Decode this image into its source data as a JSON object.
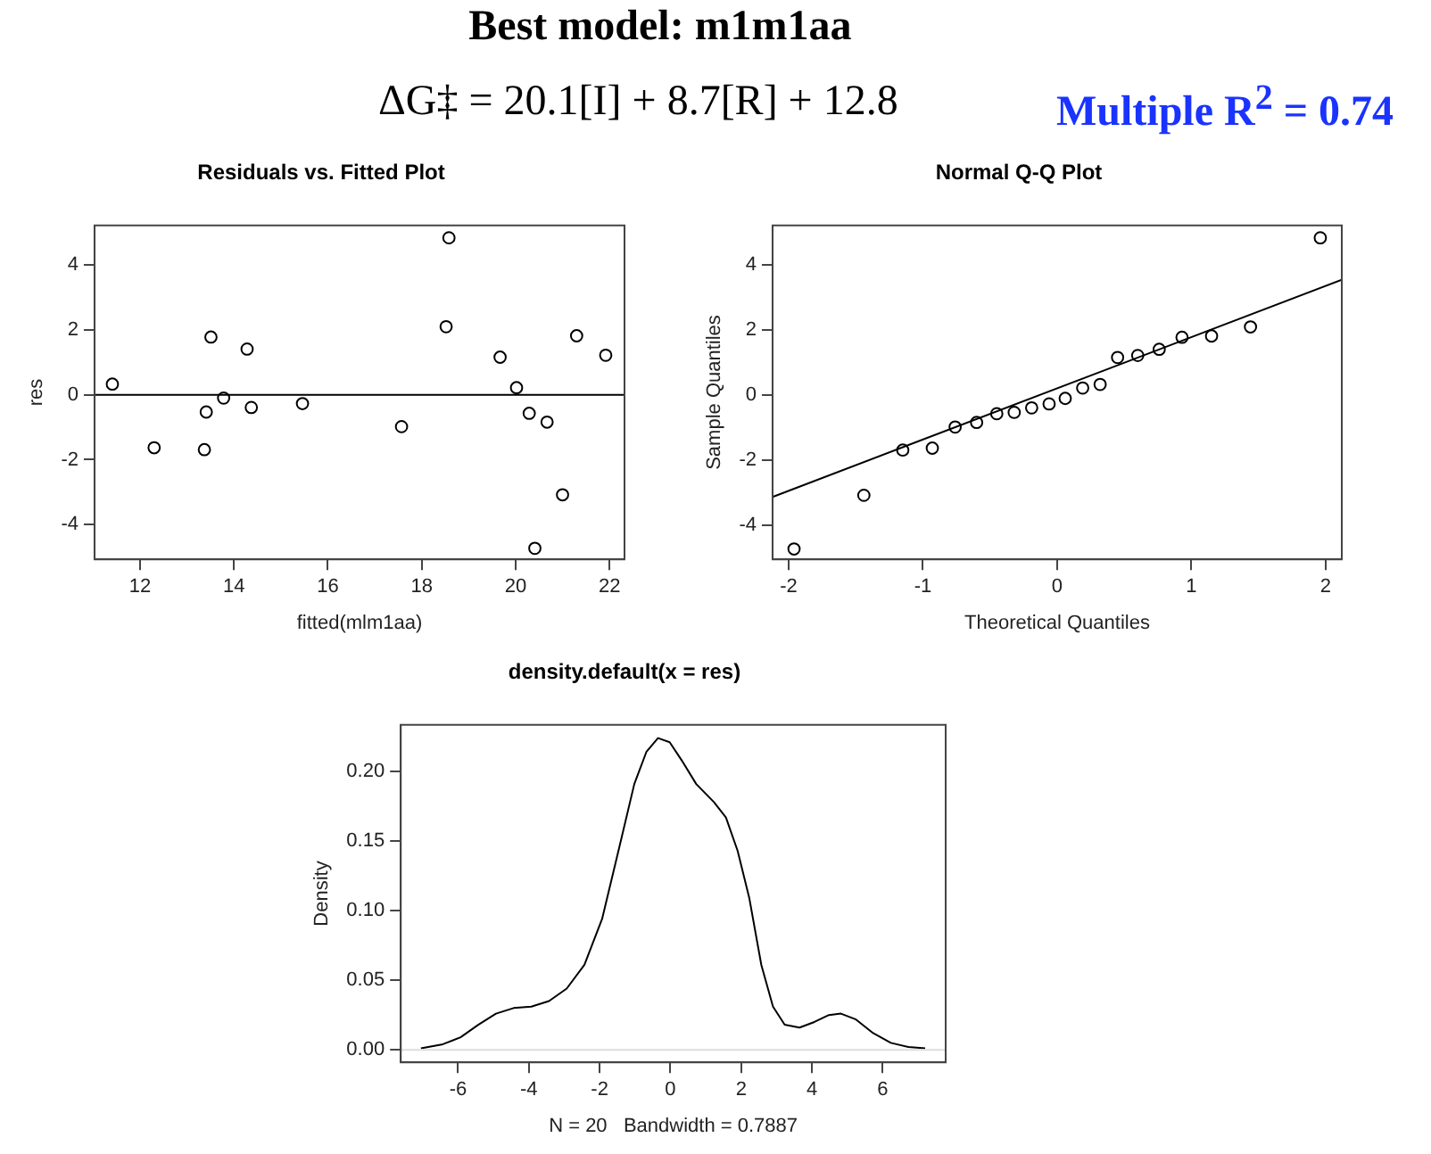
{
  "chart_data": [
    {
      "type": "other",
      "title": "Best model: m1m1aa",
      "annotations": [
        "ΔG‡ = 20.1[I] + 8.7[R] + 12.8",
        "Multiple R$^{2}$ = 0.74"
      ]
    },
    {
      "type": "scatter",
      "title": "Residuals vs. Fitted Plot",
      "xlabel": "fitted(mlm1aa)",
      "ylabel": "res",
      "marker": "circle",
      "color": "#000000",
      "x": [
        11.41,
        12.3,
        13.37,
        13.41,
        13.51,
        13.78,
        14.28,
        14.37,
        15.46,
        17.57,
        18.52,
        18.58,
        19.67,
        20.02,
        20.29,
        20.67,
        21.0,
        20.41,
        21.3,
        21.92
      ],
      "values": [
        0.33,
        -1.63,
        -1.69,
        -0.53,
        1.78,
        -0.1,
        1.41,
        -0.39,
        -0.27,
        -0.98,
        2.1,
        4.84,
        1.16,
        0.22,
        -0.57,
        -0.84,
        -3.08,
        -4.73,
        1.82,
        1.22
      ],
      "xlim": [
        11.03,
        22.32
      ],
      "xticks": [
        12,
        14,
        16,
        18,
        20,
        22
      ],
      "ylim": [
        -5.07,
        5.22
      ],
      "yticks": [
        -4,
        -2,
        0,
        2,
        4
      ],
      "ref_lines": [
        {
          "axis": "y",
          "value": 0,
          "color": "#000000"
        }
      ]
    },
    {
      "type": "scatter",
      "title": "Normal Q-Q Plot",
      "xlabel": "Theoretical Quantiles",
      "ylabel": "Sample Quantiles",
      "series": [
        {
          "type": "scatter",
          "marker": "circle",
          "color": "#000000",
          "x": [
            -1.96,
            -1.44,
            -1.15,
            -0.93,
            -0.76,
            -0.6,
            -0.45,
            -0.32,
            -0.19,
            -0.06,
            0.06,
            0.19,
            0.32,
            0.45,
            0.6,
            0.76,
            0.93,
            1.15,
            1.44,
            1.96
          ],
          "values": [
            -4.73,
            -3.08,
            -1.69,
            -1.63,
            -0.98,
            -0.84,
            -0.57,
            -0.53,
            -0.39,
            -0.27,
            -0.1,
            0.22,
            0.33,
            1.16,
            1.22,
            1.41,
            1.78,
            1.82,
            2.1,
            4.84
          ]
        },
        {
          "type": "line",
          "marker": "none",
          "line_style": "solid",
          "color": "#000000",
          "x": [
            -2.12,
            2.12
          ],
          "values": [
            -3.13,
            3.55
          ]
        }
      ],
      "xlim": [
        -2.12,
        2.12
      ],
      "xticks": [
        -2,
        -1,
        0,
        1,
        2
      ],
      "ylim": [
        -5.05,
        5.22
      ],
      "yticks": [
        -4,
        -2,
        0,
        2,
        4
      ]
    },
    {
      "type": "line",
      "title": "density.default(x = res)",
      "xlabel": "N = 20   Bandwidth = 0.7887",
      "ylabel": "Density",
      "marker": "none",
      "line_style": "solid",
      "color": "#000000",
      "x": [
        -7.05,
        -6.43,
        -5.93,
        -5.43,
        -4.93,
        -4.43,
        -3.93,
        -3.43,
        -2.93,
        -2.43,
        -1.93,
        -1.43,
        -1.02,
        -0.68,
        -0.35,
        -0.02,
        0.32,
        0.73,
        1.23,
        1.57,
        1.9,
        2.23,
        2.57,
        2.9,
        3.23,
        3.65,
        4.07,
        4.48,
        4.82,
        5.23,
        5.73,
        6.23,
        6.73,
        7.2
      ],
      "values": [
        0.001,
        0.004,
        0.009,
        0.018,
        0.026,
        0.03,
        0.031,
        0.035,
        0.044,
        0.061,
        0.094,
        0.147,
        0.191,
        0.214,
        0.224,
        0.221,
        0.208,
        0.191,
        0.178,
        0.167,
        0.143,
        0.109,
        0.061,
        0.031,
        0.018,
        0.016,
        0.02,
        0.025,
        0.026,
        0.022,
        0.012,
        0.005,
        0.002,
        0.001
      ],
      "xlim": [
        -7.62,
        7.78
      ],
      "xticks": [
        -6,
        -4,
        -2,
        0,
        2,
        4,
        6
      ],
      "ylim": [
        -0.009,
        0.2335
      ],
      "yticks": [
        {
          "value": 0,
          "label": "0.00"
        },
        {
          "value": 0.05,
          "label": "0.05"
        },
        {
          "value": 0.1,
          "label": "0.10"
        },
        {
          "value": 0.15,
          "label": "0.15"
        },
        {
          "value": 0.2,
          "label": "0.20"
        }
      ],
      "ref_lines": [
        {
          "axis": "y",
          "value": 0,
          "color": "#dddddd"
        }
      ]
    }
  ]
}
